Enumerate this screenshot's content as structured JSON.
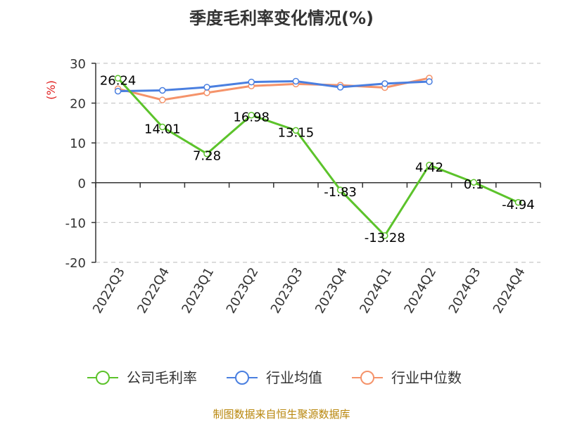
{
  "chart_data": {
    "type": "line",
    "title": "季度毛利率变化情况(%)",
    "ylabel": "(%)",
    "categories": [
      "2022Q3",
      "2022Q4",
      "2023Q1",
      "2023Q2",
      "2023Q3",
      "2023Q4",
      "2024Q1",
      "2024Q2",
      "2024Q3",
      "2024Q4"
    ],
    "ylim": [
      -20,
      30
    ],
    "yticks": [
      30,
      20,
      10,
      0,
      -10,
      -20
    ],
    "grid": true,
    "legend_position": "bottom",
    "series": [
      {
        "name": "公司毛利率",
        "color": "#5cc32b",
        "values": [
          26.24,
          14.01,
          7.28,
          16.98,
          13.15,
          -1.83,
          -13.28,
          4.42,
          0.1,
          -4.94
        ],
        "labels": [
          "26.24",
          "14.01",
          "7.28",
          "16.98",
          "13.15",
          "-1.83",
          "-13.28",
          "4.42",
          "0.1",
          "-4.94"
        ]
      },
      {
        "name": "行业均值",
        "color": "#4a7fe0",
        "values": [
          23.0,
          23.2,
          24.0,
          25.3,
          25.5,
          24.0,
          24.9,
          25.4,
          null,
          null
        ]
      },
      {
        "name": "行业中位数",
        "color": "#f5936a",
        "values": [
          23.6,
          20.8,
          22.6,
          24.3,
          24.8,
          24.5,
          23.9,
          26.3,
          null,
          null
        ]
      }
    ]
  },
  "source_note": "制图数据来自恒生聚源数据库"
}
